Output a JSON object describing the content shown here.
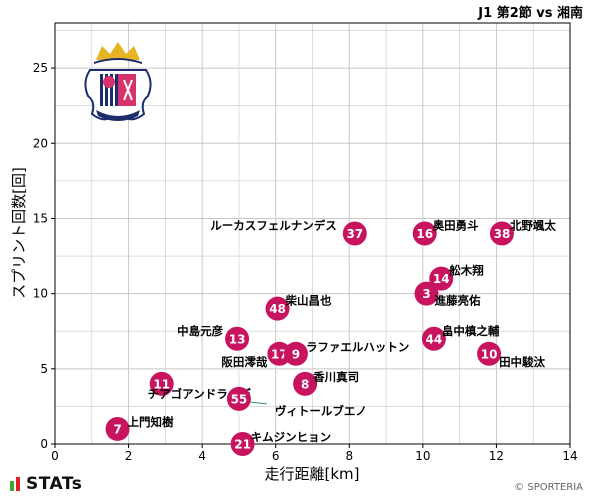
{
  "header": {
    "match_title": "J1 第2節 vs 湘南"
  },
  "footer": {
    "brand": "STATs",
    "copyright": "© SPORTERIA"
  },
  "colors": {
    "point": "#C8145E",
    "grid": "#c8c8c8",
    "axis": "#000000",
    "crest_pink": "#D6336C",
    "crest_navy": "#1D2C6B",
    "crest_gold": "#E6B422",
    "stats_green": "#3BAA35",
    "stats_red": "#E02020"
  },
  "icons": {
    "team_logo": "cerezo-osaka-crest-icon",
    "brand_logo": "stats-bars-icon"
  },
  "chart_data": {
    "type": "scatter",
    "xlabel": "走行距離[km]",
    "ylabel": "スプリント回数[回]",
    "xlim": [
      0,
      14
    ],
    "ylim": [
      0,
      28
    ],
    "xticks": [
      0,
      2,
      4,
      6,
      8,
      10,
      12,
      14
    ],
    "yticks": [
      0,
      5,
      10,
      15,
      20,
      25
    ],
    "grid": true,
    "points": [
      {
        "number": "37",
        "name": "ルーカスフェルナンデス",
        "x": 8.15,
        "y": 14
      },
      {
        "number": "16",
        "name": "奥田勇斗",
        "x": 10.05,
        "y": 14
      },
      {
        "number": "38",
        "name": "北野颯太",
        "x": 12.15,
        "y": 14
      },
      {
        "number": "14",
        "name": "舩木翔",
        "x": 10.5,
        "y": 11
      },
      {
        "number": "3",
        "name": "進藤亮佑",
        "x": 10.1,
        "y": 10
      },
      {
        "number": "48",
        "name": "柴山昌也",
        "x": 6.05,
        "y": 9
      },
      {
        "number": "44",
        "name": "畠中槙之輔",
        "x": 10.3,
        "y": 7
      },
      {
        "number": "13",
        "name": "中島元彦",
        "x": 4.95,
        "y": 7
      },
      {
        "number": "10",
        "name": "田中駿汰",
        "x": 11.8,
        "y": 6
      },
      {
        "number": "17",
        "name": "阪田澪哉",
        "x": 6.1,
        "y": 6
      },
      {
        "number": "9",
        "name": "ラファエルハットン",
        "x": 6.55,
        "y": 6
      },
      {
        "number": "8",
        "name": "香川真司",
        "x": 6.8,
        "y": 4
      },
      {
        "number": "11",
        "name": "チアゴアンドラーデ",
        "x": 2.9,
        "y": 4
      },
      {
        "number": "55",
        "name": "ヴィトールブエノ",
        "x": 5.0,
        "y": 3
      },
      {
        "number": "7",
        "name": "上門知樹",
        "x": 1.7,
        "y": 1
      },
      {
        "number": "21",
        "name": "キムジンヒョン",
        "x": 5.1,
        "y": 0
      }
    ]
  }
}
